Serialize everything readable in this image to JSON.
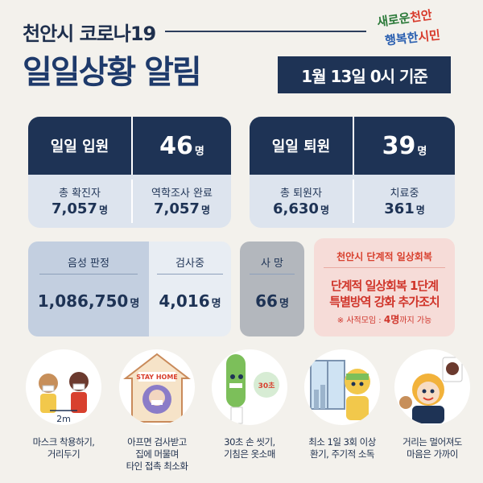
{
  "header": {
    "city_title": "천안시 코로나19",
    "main_title": "일일상황 알림",
    "date_basis": "1월 13일 0시 기준",
    "logo_line1_a": "새로운",
    "logo_line1_b": "천안",
    "logo_line2_a": "행복한",
    "logo_line2_b": "시민"
  },
  "admission": {
    "label": "일일 입원",
    "value": "46",
    "unit": "명",
    "total_label": "총 확진자",
    "total_value": "7,057",
    "epi_label": "역학조사 완료",
    "epi_value": "7,057"
  },
  "discharge": {
    "label": "일일 퇴원",
    "value": "39",
    "unit": "명",
    "total_label": "총 퇴원자",
    "total_value": "6,630",
    "treat_label": "치료중",
    "treat_value": "361"
  },
  "testing": {
    "negative_label": "음성 판정",
    "negative_value": "1,086,750",
    "pending_label": "검사중",
    "pending_value": "4,016",
    "unit": "명"
  },
  "death": {
    "label": "사 망",
    "value": "66",
    "unit": "명"
  },
  "recovery": {
    "title": "천안시 단계적 일상회복",
    "line1": "단계적 일상회복 1단계",
    "line2": "특별방역 강화 추가조치",
    "note_prefix": "※ 사적모임 : ",
    "note_bold": "4명",
    "note_suffix": "까지 가능"
  },
  "tips": [
    {
      "caption_l1": "마스크 착용하기,",
      "caption_l2": "거리두기",
      "caption_l3": "",
      "art_text": "2m"
    },
    {
      "caption_l1": "아프면 검사받고",
      "caption_l2": "집에 머물며",
      "caption_l3": "타인 접촉 최소화",
      "art_text": "STAY HOME"
    },
    {
      "caption_l1": "30초 손 씻기,",
      "caption_l2": "기침은 옷소매",
      "caption_l3": "",
      "art_text": "30초"
    },
    {
      "caption_l1": "최소 1일 3회 이상",
      "caption_l2": "환기, 주기적 소독",
      "caption_l3": "",
      "art_text": ""
    },
    {
      "caption_l1": "거리는 멀어져도",
      "caption_l2": "마음은 가까이",
      "caption_l3": "",
      "art_text": ""
    }
  ],
  "colors": {
    "navy": "#1e3355",
    "light_blue": "#dde4ee",
    "red": "#d0352b",
    "pink": "#f6dcd8",
    "gray": "#b3b7bd"
  }
}
